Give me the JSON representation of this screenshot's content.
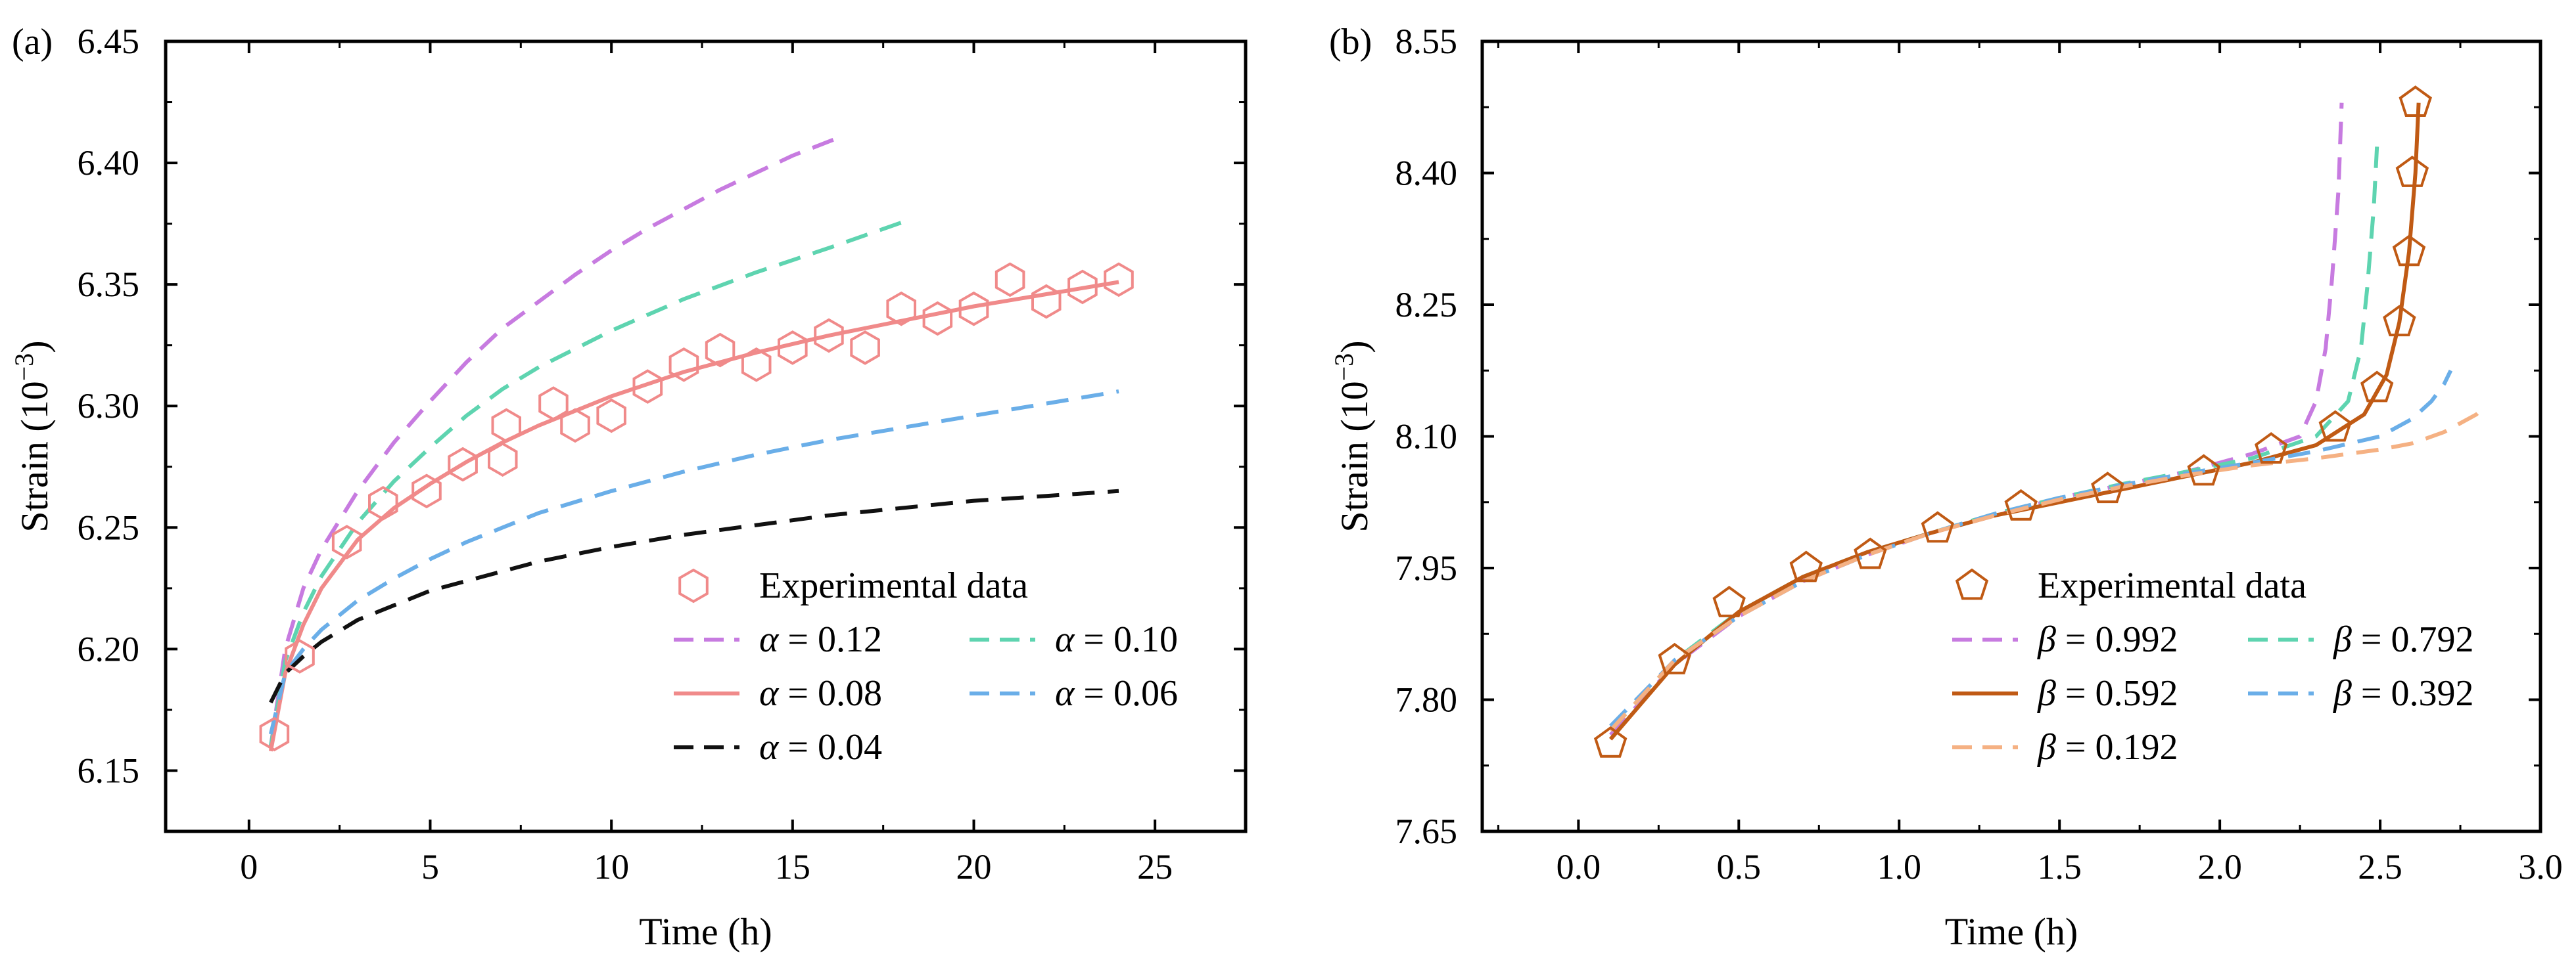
{
  "chart_data": [
    {
      "panel_label": "(a)",
      "type": "line",
      "xlabel": "Time (h)",
      "ylabel_main": "Strain (10",
      "ylabel_exp": "−3",
      "ylabel_close": ")",
      "xlim": [
        -2.3,
        27.5
      ],
      "ylim": [
        6.125,
        6.45
      ],
      "xticks": [
        0,
        5,
        10,
        15,
        20,
        25
      ],
      "yticks": [
        6.15,
        6.2,
        6.25,
        6.3,
        6.35,
        6.4,
        6.45
      ],
      "xtick_labels": [
        "0",
        "5",
        "10",
        "15",
        "20",
        "25"
      ],
      "ytick_labels": [
        "6.15",
        "6.20",
        "6.25",
        "6.30",
        "6.35",
        "6.40",
        "6.45"
      ],
      "grid": false,
      "legend_position": "lower-right",
      "experimental": {
        "name": "Experimental data",
        "marker": "hexagon",
        "color": "#f08a8a",
        "x": [
          0.7,
          1.4,
          2.7,
          3.7,
          4.9,
          5.9,
          7.0,
          7.1,
          8.4,
          9.0,
          10.0,
          11.0,
          12.0,
          13.0,
          14.0,
          15.0,
          16.0,
          17.0,
          18.0,
          19.0,
          20.0,
          21.0,
          22.0,
          23.0,
          24.0
        ],
        "y": [
          6.165,
          6.197,
          6.244,
          6.26,
          6.265,
          6.276,
          6.278,
          6.292,
          6.301,
          6.292,
          6.296,
          6.308,
          6.317,
          6.323,
          6.317,
          6.324,
          6.329,
          6.324,
          6.34,
          6.336,
          6.34,
          6.352,
          6.343,
          6.349,
          6.352
        ]
      },
      "series": [
        {
          "name": "α = 0.12",
          "sym": "α",
          "val": "0.12",
          "color": "#c77be0",
          "dash": "dashed",
          "x": [
            0.6,
            1.0,
            1.5,
            2.0,
            3.0,
            4.0,
            5.0,
            6.0,
            7.0,
            8.0,
            9.0,
            10.0,
            11.0,
            12.0,
            13.0,
            14.0,
            15.0,
            16.2
          ],
          "y": [
            6.16,
            6.2,
            6.225,
            6.241,
            6.265,
            6.285,
            6.302,
            6.318,
            6.332,
            6.343,
            6.354,
            6.364,
            6.373,
            6.381,
            6.389,
            6.396,
            6.403,
            6.41
          ]
        },
        {
          "name": "α = 0.10",
          "sym": "α",
          "val": "0.10",
          "color": "#5ed4b0",
          "dash": "dashed",
          "x": [
            0.6,
            1.0,
            1.5,
            2.0,
            3.0,
            4.0,
            5.0,
            6.0,
            7.0,
            8.0,
            10.0,
            12.0,
            14.0,
            16.0,
            18.3
          ],
          "y": [
            6.16,
            6.195,
            6.215,
            6.23,
            6.252,
            6.269,
            6.283,
            6.296,
            6.307,
            6.316,
            6.331,
            6.344,
            6.355,
            6.365,
            6.377
          ]
        },
        {
          "name": "α = 0.08",
          "sym": "α",
          "val": "0.08",
          "color": "#f08a8a",
          "dash": "solid",
          "x": [
            0.6,
            1.0,
            1.5,
            2.0,
            3.0,
            4.0,
            5.0,
            6.0,
            7.0,
            8.0,
            10.0,
            12.0,
            14.0,
            16.0,
            18.0,
            20.0,
            22.0,
            24.0
          ],
          "y": [
            6.158,
            6.19,
            6.21,
            6.225,
            6.245,
            6.258,
            6.268,
            6.277,
            6.285,
            6.292,
            6.304,
            6.314,
            6.322,
            6.329,
            6.335,
            6.341,
            6.346,
            6.351
          ]
        },
        {
          "name": "α = 0.06",
          "sym": "α",
          "val": "0.06",
          "color": "#6aaee8",
          "dash": "dashed",
          "x": [
            0.6,
            1.0,
            1.5,
            2.0,
            3.0,
            4.0,
            5.0,
            6.0,
            8.0,
            10.0,
            12.0,
            14.0,
            16.0,
            18.0,
            20.0,
            22.0,
            24.0
          ],
          "y": [
            6.165,
            6.19,
            6.2,
            6.208,
            6.22,
            6.229,
            6.237,
            6.244,
            6.256,
            6.265,
            6.273,
            6.28,
            6.286,
            6.291,
            6.296,
            6.301,
            6.306
          ]
        },
        {
          "name": "α = 0.04",
          "sym": "α",
          "val": "0.04",
          "color": "#111111",
          "dash": "dashed",
          "x": [
            0.6,
            1.0,
            1.5,
            2.0,
            3.0,
            4.0,
            5.0,
            6.0,
            8.0,
            10.0,
            12.0,
            14.0,
            16.0,
            18.0,
            20.0,
            22.0,
            24.0
          ],
          "y": [
            6.178,
            6.19,
            6.197,
            6.203,
            6.212,
            6.218,
            6.224,
            6.228,
            6.236,
            6.242,
            6.247,
            6.251,
            6.255,
            6.258,
            6.261,
            6.263,
            6.265
          ]
        }
      ]
    },
    {
      "panel_label": "(b)",
      "type": "line",
      "xlabel": "Time (h)",
      "ylabel_main": "Strain (10",
      "ylabel_exp": "−3",
      "ylabel_close": ")",
      "xlim": [
        -0.3,
        3.0
      ],
      "ylim": [
        7.65,
        8.55
      ],
      "xticks": [
        0.0,
        0.5,
        1.0,
        1.5,
        2.0,
        2.5,
        3.0
      ],
      "yticks": [
        7.65,
        7.8,
        7.95,
        8.1,
        8.25,
        8.4,
        8.55
      ],
      "xtick_labels": [
        "0.0",
        "0.5",
        "1.0",
        "1.5",
        "2.0",
        "2.5",
        "3.0"
      ],
      "ytick_labels": [
        "7.65",
        "7.80",
        "7.95",
        "8.10",
        "8.25",
        "8.40",
        "8.55"
      ],
      "grid": false,
      "legend_position": "lower-right",
      "experimental": {
        "name": "Experimental data",
        "marker": "pentagon",
        "color": "#c05a14",
        "x": [
          0.1,
          0.3,
          0.47,
          0.71,
          0.91,
          1.12,
          1.38,
          1.65,
          1.95,
          2.16,
          2.36,
          2.49,
          2.56,
          2.59,
          2.6,
          2.61
        ],
        "y": [
          7.75,
          7.845,
          7.91,
          7.95,
          7.965,
          7.995,
          8.02,
          8.04,
          8.06,
          8.085,
          8.11,
          8.155,
          8.23,
          8.31,
          8.4,
          8.48
        ]
      },
      "series": [
        {
          "name": "β = 0.992",
          "sym": "β",
          "val": "0.992",
          "color": "#c77be0",
          "dash": "dashed",
          "x": [
            0.1,
            0.3,
            0.5,
            0.7,
            0.9,
            1.1,
            1.3,
            1.5,
            1.7,
            1.9,
            2.1,
            2.25,
            2.3,
            2.33,
            2.35,
            2.37,
            2.38
          ],
          "y": [
            7.76,
            7.84,
            7.895,
            7.935,
            7.965,
            7.99,
            8.01,
            8.03,
            8.045,
            8.06,
            8.08,
            8.1,
            8.14,
            8.2,
            8.28,
            8.38,
            8.48
          ]
        },
        {
          "name": "β = 0.792",
          "sym": "β",
          "val": "0.792",
          "color": "#5ed4b0",
          "dash": "dashed",
          "x": [
            0.1,
            0.3,
            0.5,
            0.7,
            0.9,
            1.1,
            1.3,
            1.5,
            1.7,
            1.9,
            2.1,
            2.3,
            2.4,
            2.44,
            2.46,
            2.48,
            2.49
          ],
          "y": [
            7.765,
            7.845,
            7.9,
            7.94,
            7.968,
            7.99,
            8.012,
            8.03,
            8.046,
            8.06,
            8.075,
            8.1,
            8.14,
            8.2,
            8.27,
            8.36,
            8.43
          ]
        },
        {
          "name": "β = 0.592",
          "sym": "β",
          "val": "0.592",
          "color": "#c05a14",
          "dash": "solid",
          "x": [
            0.1,
            0.3,
            0.5,
            0.7,
            0.9,
            1.1,
            1.3,
            1.5,
            1.7,
            1.9,
            2.1,
            2.3,
            2.45,
            2.52,
            2.56,
            2.59,
            2.61,
            2.62
          ],
          "y": [
            7.755,
            7.84,
            7.9,
            7.94,
            7.968,
            7.99,
            8.01,
            8.025,
            8.04,
            8.055,
            8.07,
            8.09,
            8.125,
            8.17,
            8.23,
            8.31,
            8.4,
            8.48
          ]
        },
        {
          "name": "β = 0.392",
          "sym": "β",
          "val": "0.392",
          "color": "#6aaee8",
          "dash": "dashed",
          "x": [
            0.1,
            0.3,
            0.5,
            0.7,
            0.9,
            1.1,
            1.3,
            1.5,
            1.7,
            1.9,
            2.1,
            2.3,
            2.5,
            2.6,
            2.66,
            2.7,
            2.72
          ],
          "y": [
            7.77,
            7.845,
            7.895,
            7.935,
            7.965,
            7.99,
            8.012,
            8.03,
            8.045,
            8.058,
            8.07,
            8.083,
            8.1,
            8.12,
            8.14,
            8.16,
            8.175
          ]
        },
        {
          "name": "β = 0.192",
          "sym": "β",
          "val": "0.192",
          "color": "#f5b183",
          "dash": "dashed",
          "x": [
            0.1,
            0.3,
            0.5,
            0.7,
            0.9,
            1.1,
            1.3,
            1.5,
            1.7,
            1.9,
            2.1,
            2.3,
            2.5,
            2.6,
            2.7,
            2.8,
            2.83
          ],
          "y": [
            7.765,
            7.845,
            7.895,
            7.935,
            7.965,
            7.99,
            8.01,
            8.028,
            8.043,
            8.056,
            8.067,
            8.075,
            8.085,
            8.092,
            8.105,
            8.125,
            8.135
          ]
        }
      ]
    }
  ]
}
